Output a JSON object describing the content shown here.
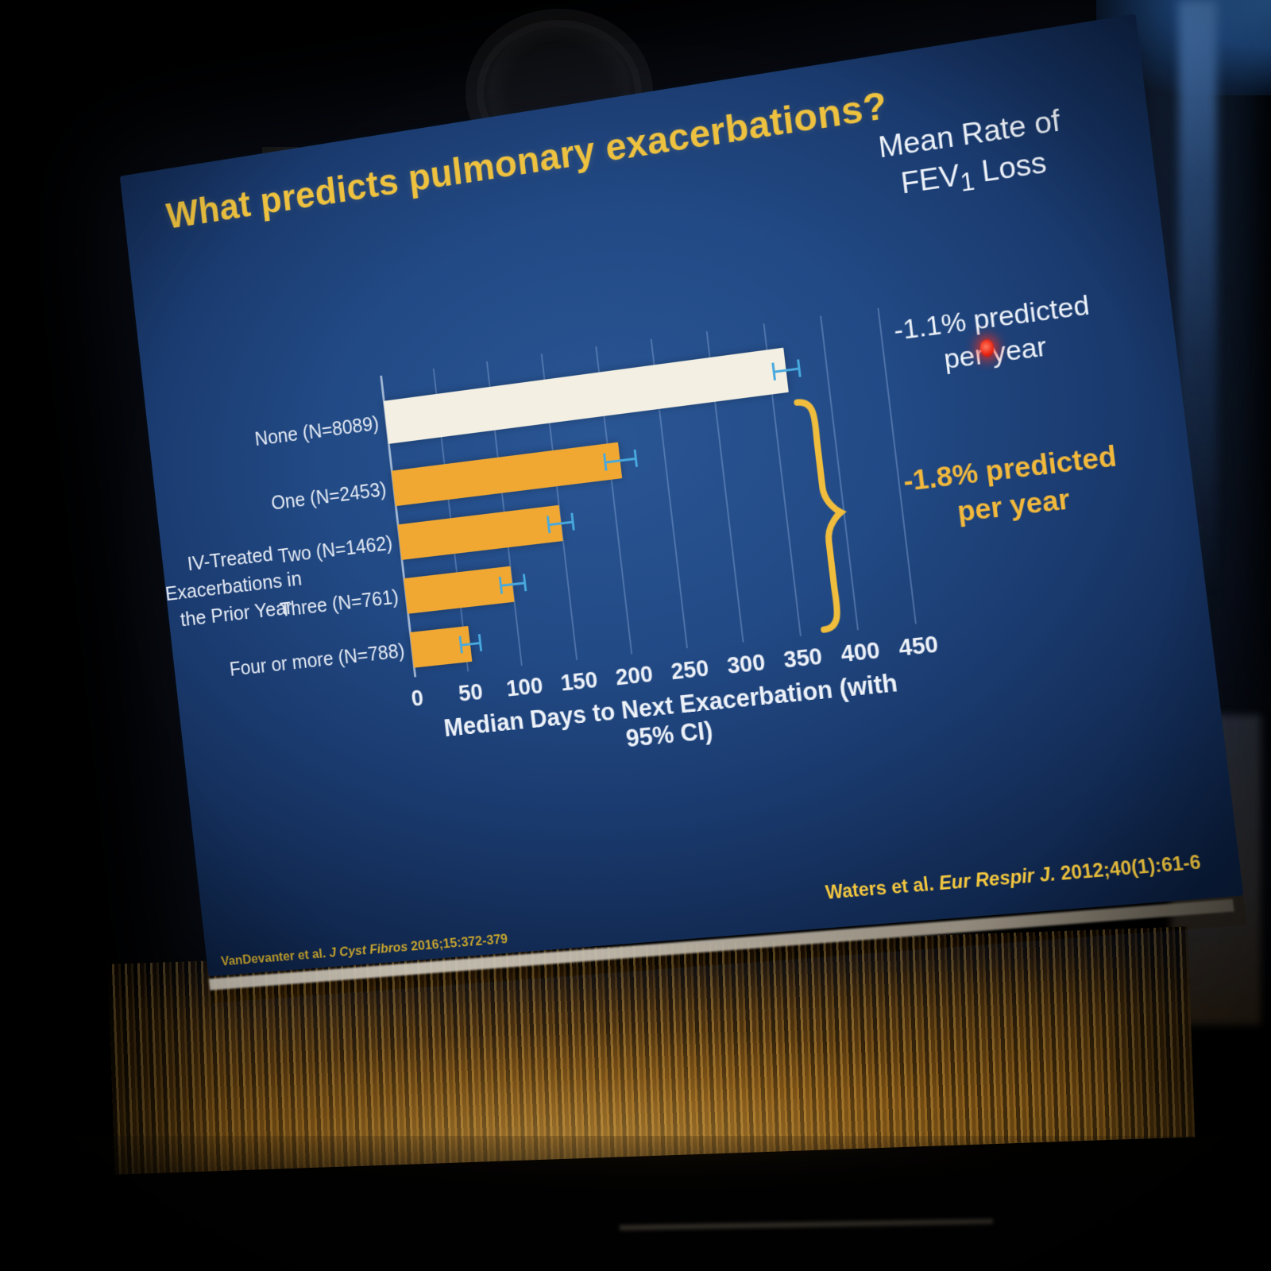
{
  "slide": {
    "title": "What predicts pulmonary exacerbations?",
    "right_panel": {
      "header_line1": "Mean Rate of",
      "header_fev": "FEV",
      "header_fev_sub": "1",
      "header_loss": " Loss",
      "rate_none_line1": "-1.1% predicted",
      "rate_none_line2": "per year",
      "rate_exac_line1": "-1.8% predicted",
      "rate_exac_line2": "per year"
    },
    "citations": {
      "right_authors": "Waters et al. ",
      "right_journal": "Eur Respir J.",
      "right_ref": " 2012;40(1):61-6",
      "left_authors": "VanDevanter et al. ",
      "left_journal": "J Cyst Fibros",
      "left_ref": " 2016;15:372-379"
    }
  },
  "chart_data": {
    "type": "bar",
    "orientation": "horizontal",
    "title": "What predicts pulmonary exacerbations?",
    "categories": [
      "None (N=8089)",
      "One (N=2453)",
      "Two (N=1462)",
      "Three (N=761)",
      "Four or more (N=788)"
    ],
    "values": [
      365,
      210,
      150,
      100,
      55
    ],
    "ci_halfwidth": [
      12,
      15,
      12,
      12,
      10
    ],
    "bar_colors": [
      "#f3efe2",
      "#f0a832",
      "#f0a832",
      "#f0a832",
      "#f0a832"
    ],
    "error_color": "#47a9de",
    "xlabel": "Median Days to Next Exacerbation (with 95% CI)",
    "x_ticks": [
      0,
      50,
      100,
      150,
      200,
      250,
      300,
      350,
      400,
      450
    ],
    "xlim": [
      0,
      450
    ],
    "grid": true,
    "legend": false,
    "group_axis_label_lines": [
      "IV-Treated",
      "Exacerbations in",
      "the Prior Year"
    ],
    "annotations": [
      {
        "target": "white bar (None group)",
        "text": "-1.1% predicted per year"
      },
      {
        "target": "orange bars (One through Four or more)",
        "text": "-1.8% predicted per year"
      }
    ]
  },
  "colors": {
    "slide_background": "#1e4179",
    "title_gold": "#eec23f",
    "bar_orange": "#f0a832",
    "bar_white": "#f3efe2",
    "error_blue": "#47a9de",
    "text_white": "#eef2f9",
    "citation_gold": "#f2c63f",
    "laser_red": "#e42318",
    "curtain_amber": "#b07a20"
  },
  "icons": {
    "laser_pointer": "red-laser-dot",
    "curly_brace": "right-curly-brace"
  }
}
